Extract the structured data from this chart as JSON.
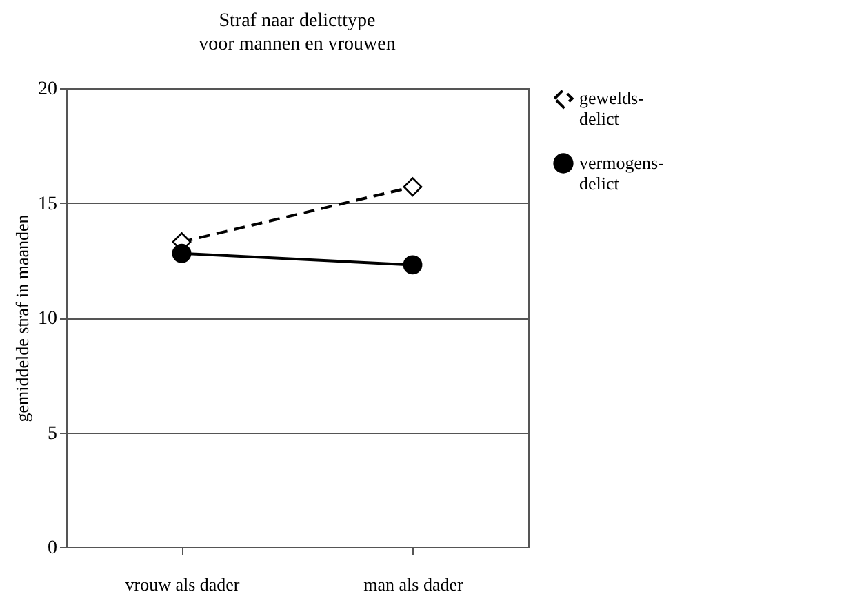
{
  "chart_data": {
    "type": "line",
    "title": "Straf naar delicttype",
    "subtitle": "voor mannen en vrouwen",
    "ylabel": "gemiddelde straf in maanden",
    "categories": [
      "vrouw als dader",
      "man als dader"
    ],
    "series": [
      {
        "name": "gewelds-delict",
        "color": "#000000",
        "values": [
          13.3,
          15.7
        ],
        "marker": "diamond",
        "line_style": "dashed"
      },
      {
        "name": "vermogens-delict",
        "color": "#000000",
        "values": [
          12.8,
          12.3
        ],
        "marker": "circle",
        "line_style": "solid"
      }
    ],
    "ylim": [
      0,
      20
    ],
    "yticks": [
      0,
      5,
      10,
      15,
      20
    ],
    "grid": "y",
    "legend": "right"
  }
}
